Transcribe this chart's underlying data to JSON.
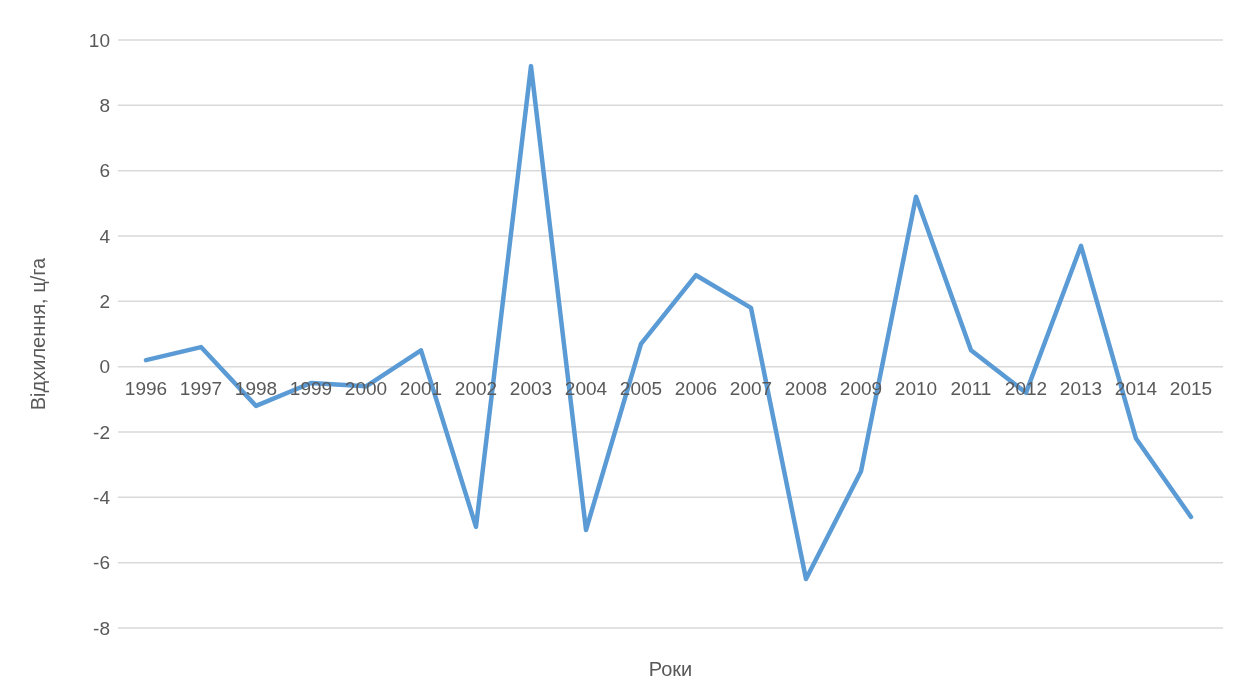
{
  "chart_data": {
    "type": "line",
    "xlabel": "Роки",
    "ylabel": "Відхилення, ц/га",
    "categories": [
      "1996",
      "1997",
      "1998",
      "1999",
      "2000",
      "2001",
      "2002",
      "2003",
      "2004",
      "2005",
      "2006",
      "2007",
      "2008",
      "2009",
      "2010",
      "2011",
      "2012",
      "2013",
      "2014",
      "2015"
    ],
    "series": [
      {
        "color": "#5b9bd5",
        "values": [
          0.2,
          0.6,
          -1.2,
          -0.5,
          -0.6,
          0.5,
          -4.9,
          9.2,
          -5.0,
          0.7,
          2.8,
          1.8,
          -6.5,
          -3.2,
          5.2,
          0.5,
          -0.8,
          3.7,
          -2.2,
          -4.6
        ]
      }
    ],
    "ylim": [
      -8,
      10
    ],
    "yticks": [
      -8,
      -6,
      -4,
      -2,
      0,
      2,
      4,
      6,
      8,
      10
    ],
    "grid": "y",
    "legend": false,
    "marker": "none",
    "line_style": "solid"
  }
}
